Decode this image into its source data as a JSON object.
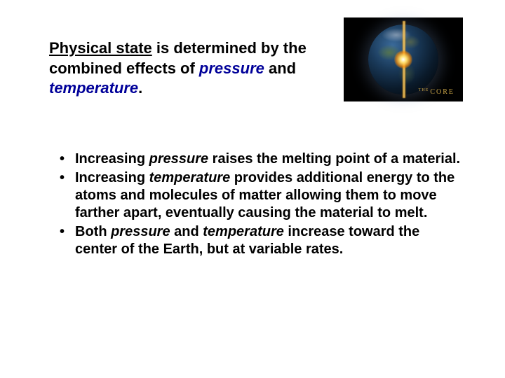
{
  "intro": {
    "keyword": "Physical state",
    "mid1": " is determined by the combined effects of ",
    "pressure": "pressure",
    "mid2": " and ",
    "temperature": "temperature",
    "end": "."
  },
  "figure": {
    "label_small": "THE",
    "label_main": "CORE"
  },
  "bullets": [
    {
      "pre": "Increasing ",
      "em": "pressure",
      "post": " raises the melting point of a material."
    },
    {
      "pre": "Increasing ",
      "em": "temperature",
      "post": " provides additional energy to the atoms and molecules of matter allowing them to move farther apart, eventually causing the material to melt."
    },
    {
      "pre": "Both ",
      "em": "pressure",
      "mid": " and ",
      "em2": "temperature",
      "post": " increase toward the center of the Earth, but at variable rates."
    }
  ],
  "colors": {
    "keyword_color": "#000099",
    "text_color": "#000000",
    "figure_bg": "#000000",
    "figure_label": "#c9a447"
  }
}
